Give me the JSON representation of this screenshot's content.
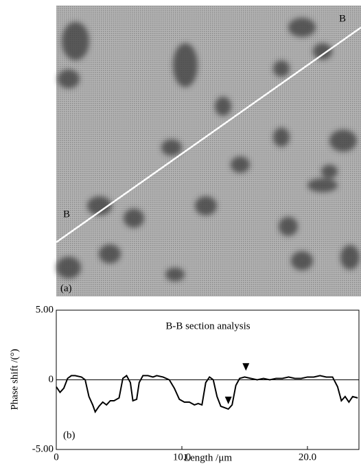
{
  "image": {
    "label_top": "B",
    "label_left": "B",
    "panel": "(a)"
  },
  "chart_data": {
    "type": "line",
    "title": "B-B section analysis",
    "panel": "(b)",
    "ylabel": "Phase shift /(°)",
    "xlabel": "Length /μm",
    "xlim": [
      0,
      24.1
    ],
    "ylim": [
      -5,
      5
    ],
    "xticks": [
      0,
      {
        "value": 10,
        "label": "10.0"
      },
      {
        "value": 20,
        "label": "20.0"
      }
    ],
    "yticks": [
      {
        "value": 5,
        "label": "5.00"
      },
      0,
      {
        "value": -5,
        "label": "-5.00"
      }
    ],
    "series": [
      {
        "color": "#000000",
        "x": [
          0,
          0.3,
          0.6,
          0.9,
          1.2,
          1.5,
          2.0,
          2.3,
          2.6,
          2.9,
          3.1,
          3.4,
          3.7,
          4.0,
          4.3,
          4.6,
          5.0,
          5.3,
          5.6,
          5.9,
          6.1,
          6.4,
          6.6,
          6.9,
          7.3,
          7.7,
          8.0,
          8.5,
          9.0,
          9.4,
          9.8,
          10.2,
          10.6,
          11.0,
          11.3,
          11.6,
          11.9,
          12.2,
          12.5,
          12.8,
          13.1,
          13.4,
          13.7,
          14.0,
          14.3,
          14.6,
          15.0,
          15.5,
          16.0,
          16.5,
          17.0,
          17.5,
          18.0,
          18.5,
          19.0,
          19.5,
          20.0,
          20.5,
          21.0,
          21.5,
          22.0,
          22.4,
          22.7,
          23.0,
          23.3,
          23.6,
          24.0
        ],
        "values": [
          -0.5,
          -0.9,
          -0.6,
          0.1,
          0.3,
          0.3,
          0.2,
          0.0,
          -1.2,
          -1.8,
          -2.3,
          -1.9,
          -1.6,
          -1.8,
          -1.5,
          -1.5,
          -1.3,
          0.1,
          0.3,
          -0.2,
          -1.5,
          -1.4,
          -0.2,
          0.3,
          0.3,
          0.2,
          0.3,
          0.2,
          0.0,
          -0.6,
          -1.4,
          -1.6,
          -1.6,
          -1.8,
          -1.7,
          -1.8,
          -0.2,
          0.2,
          0.0,
          -1.2,
          -1.9,
          -2.0,
          -2.1,
          -1.8,
          -0.4,
          0.1,
          0.2,
          0.1,
          0.0,
          0.1,
          0.0,
          0.1,
          0.1,
          0.2,
          0.1,
          0.1,
          0.2,
          0.2,
          0.3,
          0.2,
          0.2,
          -0.5,
          -1.5,
          -1.2,
          -1.6,
          -1.2,
          -1.3
        ]
      }
    ],
    "markers": {
      "x": [
        15.1,
        13.7
      ],
      "values": [
        0.9,
        -1.5
      ]
    }
  }
}
